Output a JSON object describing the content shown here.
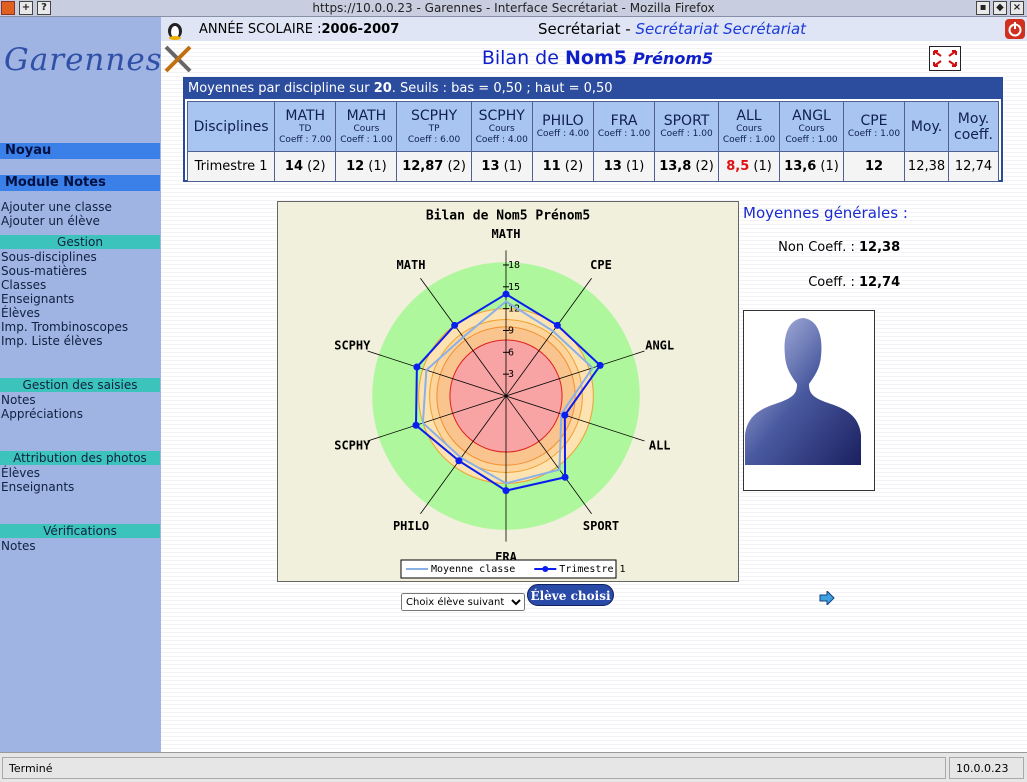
{
  "window": {
    "title": "https://10.0.0.23 - Garennes - Interface Secrétariat - Mozilla Firefox"
  },
  "header": {
    "logo": "Garennes",
    "year_label": "ANNÉE SCOLAIRE :",
    "year": "2006-2007",
    "section": "Secrétariat -",
    "section_sub": "Secrétariat Secrétariat"
  },
  "sidebar": {
    "top": [
      {
        "title": "Noyau",
        "items": []
      },
      {
        "title": "Module Notes",
        "items": [
          "Ajouter une classe",
          "Ajouter un élève"
        ]
      }
    ],
    "groups": [
      {
        "title": "Gestion",
        "items": [
          "Sous-disciplines",
          "Sous-matières",
          "Classes",
          "Enseignants",
          "Élèves",
          "Imp. Trombinoscopes",
          "Imp. Liste élèves"
        ]
      },
      {
        "title": "Gestion des saisies",
        "items": [
          "Notes",
          "Appréciations"
        ]
      },
      {
        "title": "Attribution des photos",
        "items": [
          "Élèves",
          "Enseignants"
        ]
      },
      {
        "title": "Vérifications",
        "items": [
          "Notes"
        ]
      }
    ]
  },
  "page_title": {
    "prefix": "Bilan de",
    "name": "Nom5",
    "firstname": "Prénom5"
  },
  "table": {
    "caption": {
      "before": "Moyennes par discipline sur",
      "max": "20",
      "after": ". Seuils : bas = 0,50 ; haut = 0,50"
    },
    "row_header": "Disciplines",
    "columns": [
      {
        "name": "MATH",
        "sub": "TD",
        "coeff": "Coeff : 7.00"
      },
      {
        "name": "MATH",
        "sub": "Cours",
        "coeff": "Coeff : 1.00"
      },
      {
        "name": "SCPHY",
        "sub": "TP",
        "coeff": "Coeff : 6.00"
      },
      {
        "name": "SCPHY",
        "sub": "Cours",
        "coeff": "Coeff : 4.00"
      },
      {
        "name": "PHILO",
        "coeff": "Coeff : 4.00"
      },
      {
        "name": "FRA",
        "coeff": "Coeff : 1.00"
      },
      {
        "name": "SPORT",
        "coeff": "Coeff : 1.00"
      },
      {
        "name": "ALL",
        "sub": "Cours",
        "coeff": "Coeff : 1.00"
      },
      {
        "name": "ANGL",
        "sub": "Cours",
        "coeff": "Coeff : 1.00"
      },
      {
        "name": "CPE",
        "coeff": "Coeff : 1.00"
      }
    ],
    "average_header": "Moy.",
    "weighted_header": "Moy. coeff.",
    "row": {
      "label": "Trimestre 1",
      "marks": [
        {
          "value": "14",
          "count": "(2)"
        },
        {
          "value": "12",
          "count": "(1)"
        },
        {
          "value": "12,87",
          "count": "(2)"
        },
        {
          "value": "13",
          "count": "(1)"
        },
        {
          "value": "11",
          "count": "(2)"
        },
        {
          "value": "13",
          "count": "(1)"
        },
        {
          "value": "13,8",
          "count": "(2)"
        },
        {
          "value": "8,5",
          "count": "(1)",
          "color": "#e01010"
        },
        {
          "value": "13,6",
          "count": "(1)"
        },
        {
          "value": "12"
        }
      ],
      "average": "12,38",
      "weighted_average": "12,74"
    }
  },
  "chart_data": {
    "type": "radar",
    "title": "Bilan de Nom5 Prénom5",
    "categories": [
      "MATH",
      "MATH",
      "SCPHY",
      "SCPHY",
      "PHILO",
      "FRA",
      "SPORT",
      "ALL",
      "ANGL",
      "CPE"
    ],
    "direction": "counterclockwise",
    "rlim": [
      0,
      20
    ],
    "rticks": [
      3,
      6,
      9,
      12,
      15,
      18
    ],
    "bands": [
      {
        "to": 18.3,
        "color": "#aef79c",
        "edge": "#aef79c"
      },
      {
        "to": 12,
        "color": "#fde3b2",
        "edge": "#f0a030"
      },
      {
        "to": 10.5,
        "color": "#fcd49c",
        "edge": "#f0a030"
      },
      {
        "to": 9.5,
        "color": "#fac48e",
        "edge": "#f09030"
      },
      {
        "to": 7.7,
        "color": "#f8a4a4",
        "edge": "#e02020"
      }
    ],
    "series": [
      {
        "name": "Moyenne classe",
        "color": "#8ab0e8",
        "marker": false,
        "values": [
          13,
          10,
          11.5,
          12,
          10.5,
          12,
          12.5,
          8,
          12.5,
          11
        ]
      },
      {
        "name": "Trimestre 1",
        "color": "#0a1ef0",
        "marker": true,
        "values": [
          14,
          12,
          12.87,
          13,
          11,
          13,
          13.8,
          8.5,
          13.6,
          12
        ]
      }
    ],
    "legend": "bottom"
  },
  "summary": {
    "title": "Moyennes générales :",
    "rows": [
      {
        "label": "Non Coeff. :",
        "value": "12,38"
      },
      {
        "label": "Coeff. :",
        "value": "12,74"
      }
    ]
  },
  "controls": {
    "select": "Choix élève suivant",
    "button": "Élève choisi"
  },
  "status": {
    "text": "Terminé",
    "host": "10.0.0.23"
  }
}
